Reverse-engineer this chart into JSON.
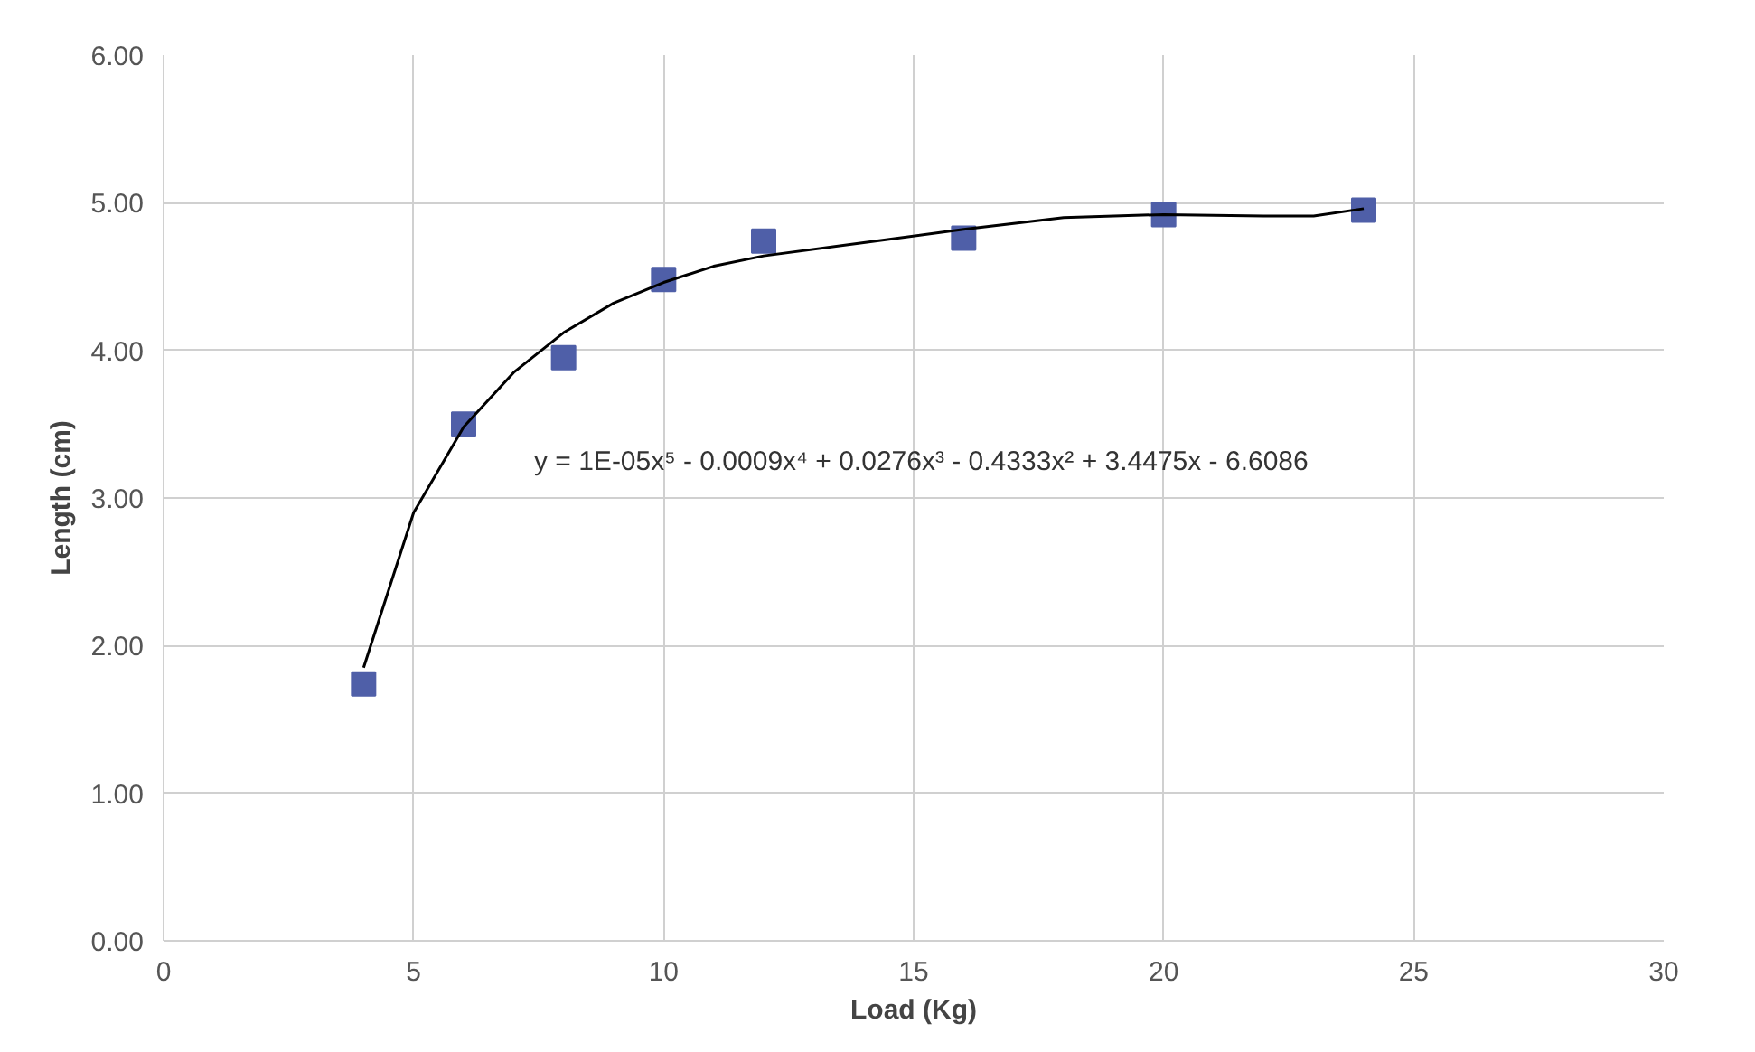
{
  "chart_data": {
    "type": "scatter",
    "xlabel": "Load (Kg)",
    "ylabel": "Length (cm)",
    "xlim": [
      0,
      30
    ],
    "ylim": [
      0,
      6
    ],
    "xticks": [
      0,
      5,
      10,
      15,
      20,
      25,
      30
    ],
    "yticks": [
      {
        "value": 0,
        "label": "0.00"
      },
      {
        "value": 1,
        "label": "1.00"
      },
      {
        "value": 2,
        "label": "2.00"
      },
      {
        "value": 3,
        "label": "3.00"
      },
      {
        "value": 4,
        "label": "4.00"
      },
      {
        "value": 5,
        "label": "5.00"
      },
      {
        "value": 6,
        "label": "6.00"
      }
    ],
    "grid": true,
    "series": [
      {
        "marker": "square",
        "color": "#4f5fa8",
        "x": [
          4,
          6,
          8,
          10,
          12,
          16,
          20,
          24
        ],
        "values": [
          1.74,
          3.5,
          3.95,
          4.48,
          4.74,
          4.76,
          4.92,
          4.95
        ]
      },
      {
        "type": "line",
        "marker": "none",
        "color": "#000000",
        "x": [
          4,
          5,
          6,
          7,
          8,
          9,
          10,
          11,
          12,
          14,
          16,
          18,
          20,
          22,
          23,
          24
        ],
        "values": [
          1.85,
          2.9,
          3.48,
          3.85,
          4.12,
          4.32,
          4.46,
          4.57,
          4.64,
          4.73,
          4.82,
          4.9,
          4.92,
          4.91,
          4.91,
          4.96
        ]
      }
    ],
    "annotations": [
      "y = 1E-05x⁵ - 0.0009x⁴ + 0.0276x³ - 0.4333x² + 3.4475x - 6.6086"
    ]
  }
}
